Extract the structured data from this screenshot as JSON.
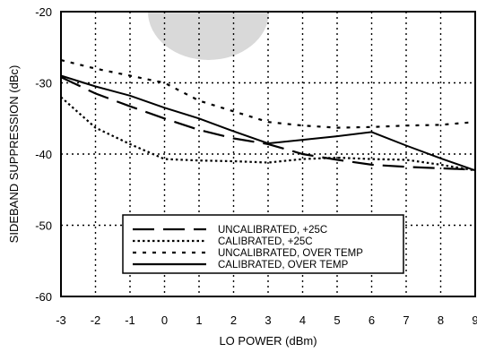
{
  "chart_data": {
    "type": "line",
    "xlabel": "LO POWER (dBm)",
    "ylabel": "SIDEBAND SUPPRESSION (dBc)",
    "xlim": [
      -3,
      9
    ],
    "ylim": [
      -60,
      -20
    ],
    "xticks": [
      "-3",
      "-2",
      "-1",
      "0",
      "1",
      "2",
      "3",
      "4",
      "5",
      "6",
      "7",
      "8",
      "9"
    ],
    "yticks": [
      "-20",
      "-30",
      "-40",
      "-50",
      "-60"
    ],
    "grid": true,
    "legend_position": "lower-center",
    "series": [
      {
        "name": "UNCALIBRATED, +25C",
        "style": "long-dash",
        "x": [
          -3,
          -2,
          -1,
          0,
          1,
          2,
          3,
          4,
          5,
          6,
          7,
          8,
          9
        ],
        "y": [
          -29.2,
          -31.5,
          -33.3,
          -35.0,
          -36.6,
          -37.8,
          -38.6,
          -40.0,
          -40.8,
          -41.5,
          -41.8,
          -42.0,
          -42.2
        ]
      },
      {
        "name": "CALIBRATED,  +25C",
        "style": "dotted",
        "x": [
          -3,
          -2,
          -1,
          0,
          1,
          2,
          3,
          4,
          5,
          6,
          7,
          8,
          9
        ],
        "y": [
          -32.0,
          -36.3,
          -38.6,
          -40.7,
          -40.9,
          -41.0,
          -41.2,
          -40.7,
          -40.5,
          -40.7,
          -40.8,
          -41.5,
          -42.3
        ]
      },
      {
        "name": "UNCALIBRATED, OVER TEMP",
        "style": "short-dash",
        "x": [
          -3,
          -2,
          -1,
          0,
          1,
          2,
          3,
          4,
          5,
          6,
          7,
          8,
          9
        ],
        "y": [
          -26.8,
          -28.0,
          -29.0,
          -30.0,
          -32.5,
          -34.0,
          -35.5,
          -36.0,
          -36.3,
          -36.2,
          -36.0,
          -35.9,
          -35.5
        ]
      },
      {
        "name": "CALIBRATED, OVER TEMP",
        "style": "solid",
        "x": [
          -3,
          -2,
          -1,
          0,
          1,
          2,
          3,
          4,
          5,
          6,
          7,
          8,
          9
        ],
        "y": [
          -29.0,
          -30.5,
          -31.8,
          -33.5,
          -35.0,
          -36.8,
          -38.5,
          -38.0,
          -37.5,
          -36.9,
          -38.8,
          -40.6,
          -42.3
        ]
      }
    ]
  }
}
